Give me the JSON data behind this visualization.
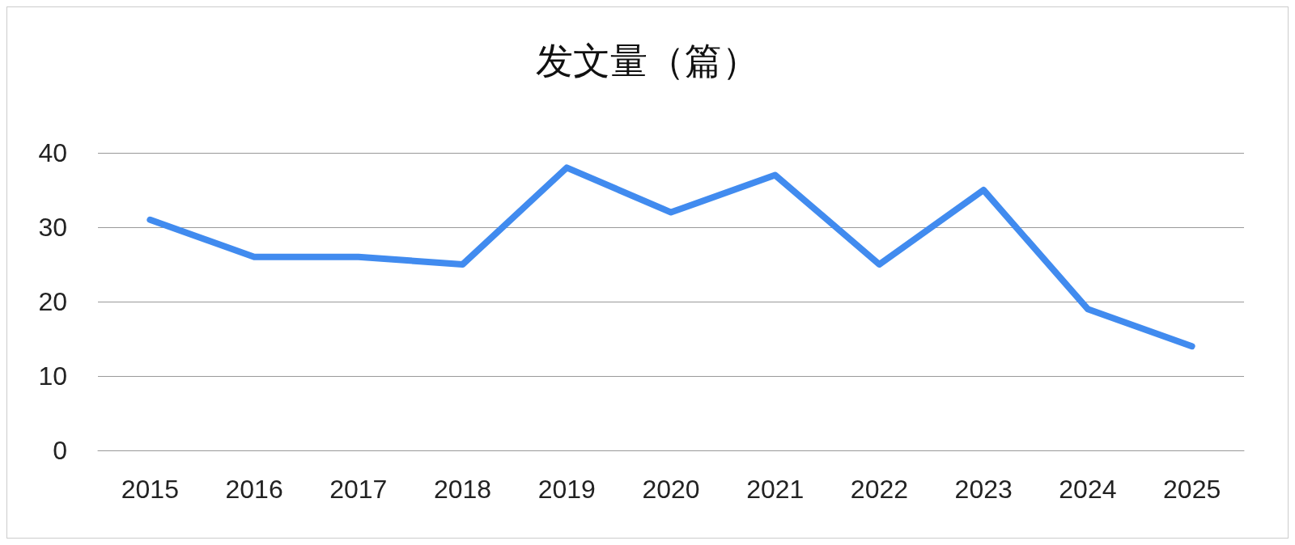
{
  "chart_data": {
    "type": "line",
    "title": "发文量（篇）",
    "categories": [
      "2015",
      "2016",
      "2017",
      "2018",
      "2019",
      "2020",
      "2021",
      "2022",
      "2023",
      "2024",
      "2025"
    ],
    "series": [
      {
        "color": "#418bef",
        "values": [
          31,
          26,
          26,
          25,
          38,
          32,
          37,
          25,
          35,
          19,
          14
        ]
      }
    ],
    "ylim": [
      0,
      40
    ],
    "yticks": [
      0,
      10,
      20,
      30,
      40
    ],
    "grid": "y",
    "line_style": "solid"
  }
}
